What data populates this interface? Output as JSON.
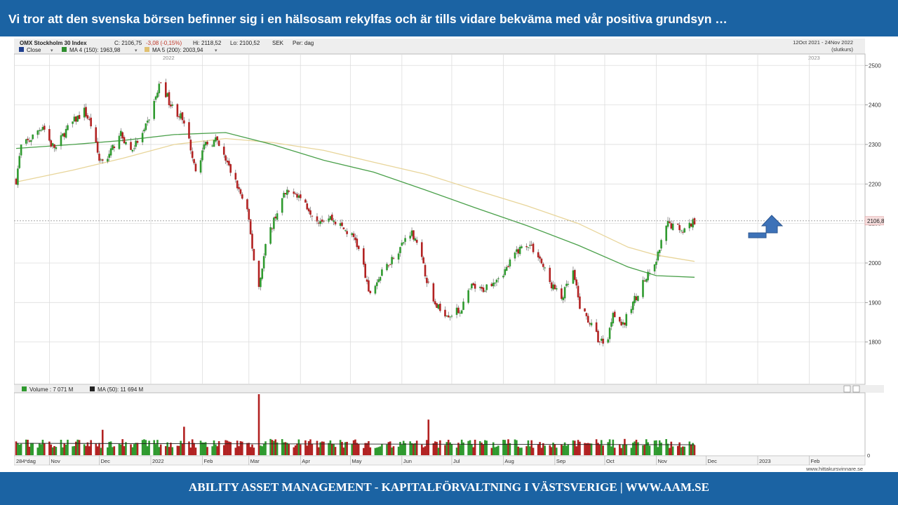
{
  "headline": "Vi tror att den svenska börsen befinner sig i en hälsosam  rekylfas och är tills vidare bekväma med vår positiva  grundsyn …",
  "footer": "ABILITY ASSET MANAGEMENT -  KAPITALFÖRVALTNING I VÄSTSVERIGE   |   WWW.AAM.SE",
  "colors": {
    "banner": "#1b63a3",
    "up": "#2f9a2f",
    "down": "#b22222",
    "ma150": "#4aa04a",
    "ma200": "#e8d59a",
    "volume_ma": "#222222",
    "arrow": "#3d72b8"
  },
  "chart_data": {
    "type": "candlestick",
    "title": "OMX Stockholm 30 Index",
    "header_stats": {
      "close": "C: 2106,75",
      "change": "-3,08 (-0,15%)",
      "high": "Hi: 2118,52",
      "low": "Lo: 2100,52",
      "currency": "SEK",
      "period": "Per: dag"
    },
    "date_range": "12Oct 2021 - 24Nov 2022",
    "range_note": "(slutkurs)",
    "legend": [
      {
        "label": "Close",
        "color": "#1f3f8f"
      },
      {
        "label": "MA 4 (150): 1963,98",
        "color": "#2f8f2f"
      },
      {
        "label": "MA 5 (200): 2003,94",
        "color": "#e0c070"
      }
    ],
    "year_labels": [
      "2022",
      "2023"
    ],
    "ylim": [
      1700,
      2520
    ],
    "y_ticks": [
      1800,
      1900,
      2000,
      2100,
      2200,
      2300,
      2400,
      2500
    ],
    "last_price_label": "2106,8",
    "last_price": 2106.8,
    "price_path": [
      [
        "2021-10-12",
        2210
      ],
      [
        "2021-10-15",
        2295
      ],
      [
        "2021-10-20",
        2310
      ],
      [
        "2021-10-25",
        2335
      ],
      [
        "2021-10-28",
        2348
      ],
      [
        "2021-11-02",
        2300
      ],
      [
        "2021-11-05",
        2290
      ],
      [
        "2021-11-10",
        2330
      ],
      [
        "2021-11-16",
        2360
      ],
      [
        "2021-11-22",
        2385
      ],
      [
        "2021-11-26",
        2350
      ],
      [
        "2021-12-01",
        2260
      ],
      [
        "2021-12-07",
        2270
      ],
      [
        "2021-12-13",
        2330
      ],
      [
        "2021-12-20",
        2285
      ],
      [
        "2021-12-28",
        2330
      ],
      [
        "2022-01-04",
        2420
      ],
      [
        "2022-01-07",
        2460
      ],
      [
        "2022-01-13",
        2400
      ],
      [
        "2022-01-19",
        2370
      ],
      [
        "2022-01-24",
        2310
      ],
      [
        "2022-01-28",
        2240
      ],
      [
        "2022-02-03",
        2300
      ],
      [
        "2022-02-09",
        2310
      ],
      [
        "2022-02-15",
        2260
      ],
      [
        "2022-02-22",
        2195
      ],
      [
        "2022-02-28",
        2130
      ],
      [
        "2022-03-04",
        2010
      ],
      [
        "2022-03-07",
        1940
      ],
      [
        "2022-03-11",
        2040
      ],
      [
        "2022-03-16",
        2110
      ],
      [
        "2022-03-22",
        2170
      ],
      [
        "2022-03-28",
        2185
      ],
      [
        "2022-04-04",
        2150
      ],
      [
        "2022-04-11",
        2110
      ],
      [
        "2022-04-19",
        2115
      ],
      [
        "2022-04-26",
        2090
      ],
      [
        "2022-05-04",
        2060
      ],
      [
        "2022-05-09",
        1990
      ],
      [
        "2022-05-12",
        1920
      ],
      [
        "2022-05-18",
        1960
      ],
      [
        "2022-05-24",
        2000
      ],
      [
        "2022-05-31",
        2040
      ],
      [
        "2022-06-06",
        2080
      ],
      [
        "2022-06-10",
        2060
      ],
      [
        "2022-06-14",
        1990
      ],
      [
        "2022-06-20",
        1900
      ],
      [
        "2022-06-24",
        1880
      ],
      [
        "2022-06-30",
        1870
      ],
      [
        "2022-07-06",
        1880
      ],
      [
        "2022-07-13",
        1940
      ],
      [
        "2022-07-19",
        1930
      ],
      [
        "2022-07-27",
        1960
      ],
      [
        "2022-08-03",
        1985
      ],
      [
        "2022-08-09",
        2030
      ],
      [
        "2022-08-16",
        2050
      ],
      [
        "2022-08-22",
        2020
      ],
      [
        "2022-08-29",
        1950
      ],
      [
        "2022-09-05",
        1910
      ],
      [
        "2022-09-12",
        1975
      ],
      [
        "2022-09-16",
        1890
      ],
      [
        "2022-09-22",
        1850
      ],
      [
        "2022-09-28",
        1800
      ],
      [
        "2022-10-03",
        1810
      ],
      [
        "2022-10-06",
        1880
      ],
      [
        "2022-10-12",
        1840
      ],
      [
        "2022-10-18",
        1900
      ],
      [
        "2022-10-24",
        1950
      ],
      [
        "2022-10-31",
        1990
      ],
      [
        "2022-11-04",
        2050
      ],
      [
        "2022-11-08",
        2100
      ],
      [
        "2022-11-14",
        2090
      ],
      [
        "2022-11-18",
        2085
      ],
      [
        "2022-11-24",
        2107
      ]
    ],
    "ma150_path": [
      [
        "2021-10-12",
        2290
      ],
      [
        "2021-11-15",
        2300
      ],
      [
        "2021-12-15",
        2310
      ],
      [
        "2022-01-15",
        2325
      ],
      [
        "2022-02-15",
        2330
      ],
      [
        "2022-03-15",
        2300
      ],
      [
        "2022-04-15",
        2260
      ],
      [
        "2022-05-15",
        2230
      ],
      [
        "2022-06-15",
        2185
      ],
      [
        "2022-07-15",
        2140
      ],
      [
        "2022-08-15",
        2095
      ],
      [
        "2022-09-15",
        2045
      ],
      [
        "2022-10-15",
        1990
      ],
      [
        "2022-11-01",
        1968
      ],
      [
        "2022-11-24",
        1964
      ]
    ],
    "ma200_path": [
      [
        "2021-10-12",
        2205
      ],
      [
        "2021-11-15",
        2235
      ],
      [
        "2021-12-15",
        2265
      ],
      [
        "2022-01-15",
        2300
      ],
      [
        "2022-02-15",
        2315
      ],
      [
        "2022-03-15",
        2305
      ],
      [
        "2022-04-15",
        2285
      ],
      [
        "2022-05-15",
        2255
      ],
      [
        "2022-06-15",
        2225
      ],
      [
        "2022-07-15",
        2185
      ],
      [
        "2022-08-15",
        2145
      ],
      [
        "2022-09-15",
        2100
      ],
      [
        "2022-10-15",
        2040
      ],
      [
        "2022-11-01",
        2020
      ],
      [
        "2022-11-24",
        2004
      ]
    ],
    "volume": {
      "legend": [
        {
          "label": "Volume : 7 071 M",
          "color": "#2f9a2f"
        },
        {
          "label": "MA (50): 11 694 M",
          "color": "#222222"
        }
      ],
      "zero_label": "0",
      "ma": 11.7,
      "spikes": [
        [
          "2021-12-03",
          25
        ],
        [
          "2022-01-21",
          28
        ],
        [
          "2022-03-07",
          60
        ],
        [
          "2022-06-17",
          35
        ]
      ]
    },
    "x_labels": [
      "284*dag",
      "Nov",
      "Dec",
      "2022",
      "Feb",
      "Mar",
      "Apr",
      "May",
      "Jun",
      "Jul",
      "Aug",
      "Sep",
      "Oct",
      "Nov",
      "Dec",
      "2023",
      "Feb"
    ],
    "source": "www.hittakursvinnare.se"
  }
}
